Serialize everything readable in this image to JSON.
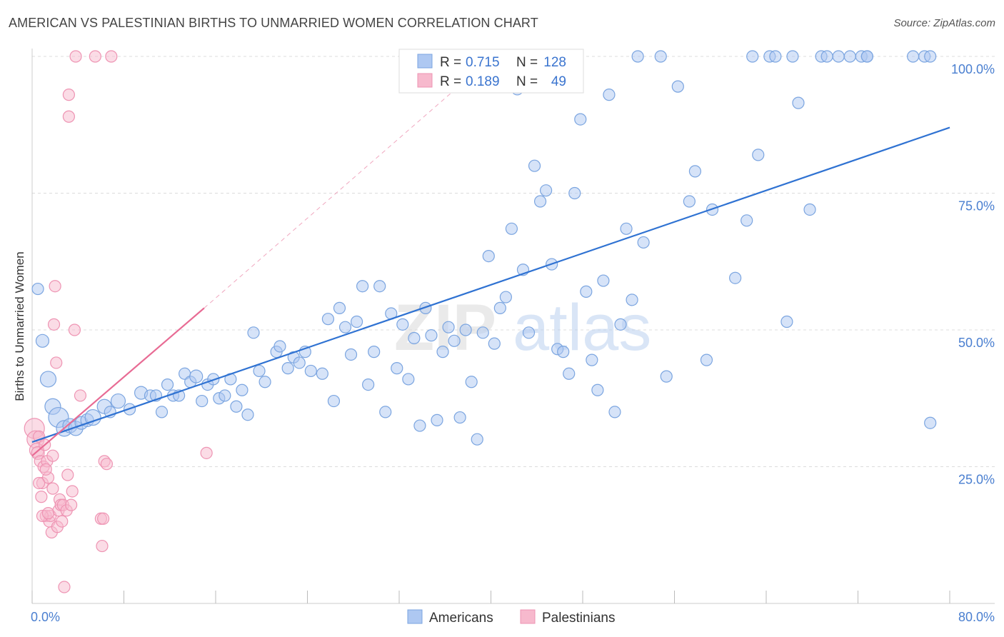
{
  "header": {
    "title": "AMERICAN VS PALESTINIAN BIRTHS TO UNMARRIED WOMEN CORRELATION CHART",
    "source": "Source: ZipAtlas.com"
  },
  "watermark": {
    "part1": "ZIP",
    "part2": "atlas"
  },
  "chart_data": {
    "type": "scatter",
    "title": "AMERICAN VS PALESTINIAN BIRTHS TO UNMARRIED WOMEN CORRELATION CHART",
    "xlabel": "",
    "ylabel": "Births to Unmarried Women",
    "xlim": [
      0,
      80
    ],
    "ylim": [
      0,
      100
    ],
    "x_tick_labels": {
      "min": "0.0%",
      "max": "80.0%"
    },
    "y_ticks": [
      {
        "value": 100,
        "label": "100.0%"
      },
      {
        "value": 75,
        "label": "75.0%"
      },
      {
        "value": 50,
        "label": "50.0%"
      },
      {
        "value": 25,
        "label": "25.0%"
      }
    ],
    "grid": true,
    "legend_placement": "top-center",
    "stats": [
      {
        "r_label": "R =",
        "r": "0.715",
        "n_label": "N =",
        "n": "128",
        "color": "#aec8f2"
      },
      {
        "r_label": "R =",
        "r": "0.189",
        "n_label": "N =",
        "n": "49",
        "color": "#f7b9cd"
      }
    ],
    "series": [
      {
        "name": "Americans",
        "color": "#aec8f2",
        "stroke": "#7ba5e0",
        "trend_color": "#2f72d2",
        "trend": {
          "x0": 0,
          "y0": 29.5,
          "x1": 80,
          "y1": 87
        },
        "points": [
          [
            0.5,
            57.5,
            8
          ],
          [
            0.9,
            48,
            9
          ],
          [
            1.4,
            41,
            11
          ],
          [
            1.8,
            36,
            11
          ],
          [
            2.3,
            34,
            14
          ],
          [
            2.8,
            32,
            11
          ],
          [
            3.3,
            32.5,
            10
          ],
          [
            3.8,
            32,
            10
          ],
          [
            4.3,
            33,
            9
          ],
          [
            4.8,
            33.5,
            9
          ],
          [
            5.3,
            34,
            11
          ],
          [
            6.3,
            36,
            10
          ],
          [
            6.8,
            35,
            8
          ],
          [
            7.5,
            37,
            10
          ],
          [
            8.5,
            35.5,
            8
          ],
          [
            9.5,
            38.5,
            9
          ],
          [
            10.3,
            38,
            8
          ],
          [
            10.8,
            38,
            8
          ],
          [
            11.3,
            35,
            8
          ],
          [
            11.8,
            40,
            8
          ],
          [
            12.3,
            38,
            8
          ],
          [
            12.8,
            38,
            8
          ],
          [
            13.3,
            42,
            8
          ],
          [
            13.8,
            40.5,
            8
          ],
          [
            14.3,
            41.5,
            9
          ],
          [
            14.8,
            37,
            8
          ],
          [
            15.3,
            40,
            8
          ],
          [
            15.8,
            41,
            8
          ],
          [
            16.3,
            37.5,
            8
          ],
          [
            16.8,
            38,
            8
          ],
          [
            17.3,
            41,
            8
          ],
          [
            17.8,
            36,
            8
          ],
          [
            18.3,
            39,
            8
          ],
          [
            18.8,
            34.5,
            8
          ],
          [
            19.3,
            49.5,
            8
          ],
          [
            19.8,
            42.5,
            8
          ],
          [
            20.3,
            40.5,
            8
          ],
          [
            21.3,
            46,
            8
          ],
          [
            21.6,
            47,
            8
          ],
          [
            22.3,
            43,
            8
          ],
          [
            22.8,
            45,
            8
          ],
          [
            23.3,
            44,
            8
          ],
          [
            23.8,
            46,
            8
          ],
          [
            24.3,
            42.5,
            8
          ],
          [
            25.3,
            42,
            8
          ],
          [
            25.8,
            52,
            8
          ],
          [
            26.3,
            37,
            8
          ],
          [
            26.8,
            54,
            8
          ],
          [
            27.3,
            50.5,
            8
          ],
          [
            27.8,
            45.5,
            8
          ],
          [
            28.3,
            51.5,
            8
          ],
          [
            28.8,
            58,
            8
          ],
          [
            29.3,
            40,
            8
          ],
          [
            29.8,
            46,
            8
          ],
          [
            30.3,
            58,
            8
          ],
          [
            30.8,
            35,
            8
          ],
          [
            31.3,
            53,
            8
          ],
          [
            31.8,
            43,
            8
          ],
          [
            32.3,
            51,
            8
          ],
          [
            32.8,
            41,
            8
          ],
          [
            33.3,
            48.5,
            8
          ],
          [
            33.8,
            32.5,
            8
          ],
          [
            34.3,
            54,
            8
          ],
          [
            34.8,
            49,
            8
          ],
          [
            35.3,
            33.5,
            8
          ],
          [
            35.8,
            46,
            8
          ],
          [
            36.3,
            50.5,
            8
          ],
          [
            36.8,
            48,
            8
          ],
          [
            37.3,
            34,
            8
          ],
          [
            37.8,
            50,
            8
          ],
          [
            38.3,
            40.5,
            8
          ],
          [
            38.8,
            30,
            8
          ],
          [
            39.3,
            49.5,
            8
          ],
          [
            39.8,
            63.5,
            8
          ],
          [
            40.3,
            47.5,
            8
          ],
          [
            40.8,
            54,
            8
          ],
          [
            41.3,
            56,
            8
          ],
          [
            41.8,
            68.5,
            8
          ],
          [
            42.3,
            94,
            8
          ],
          [
            42.8,
            61,
            8
          ],
          [
            43.3,
            49.5,
            8
          ],
          [
            43.8,
            80,
            8
          ],
          [
            44.3,
            73.5,
            8
          ],
          [
            44.8,
            75.5,
            8
          ],
          [
            45.3,
            62,
            8
          ],
          [
            45.8,
            46.5,
            8
          ],
          [
            46.3,
            46,
            8
          ],
          [
            46.8,
            42,
            8
          ],
          [
            47.3,
            75,
            8
          ],
          [
            47.8,
            88.5,
            8
          ],
          [
            48.3,
            57,
            8
          ],
          [
            48.8,
            44.5,
            8
          ],
          [
            49.3,
            39,
            8
          ],
          [
            49.8,
            59,
            8
          ],
          [
            50.3,
            93,
            8
          ],
          [
            50.8,
            35,
            8
          ],
          [
            51.3,
            51,
            8
          ],
          [
            51.8,
            68.5,
            8
          ],
          [
            52.3,
            55.5,
            8
          ],
          [
            52.8,
            100,
            8
          ],
          [
            53.3,
            66,
            8
          ],
          [
            54.8,
            100,
            8
          ],
          [
            55.3,
            41.5,
            8
          ],
          [
            56.3,
            94.5,
            8
          ],
          [
            57.3,
            73.5,
            8
          ],
          [
            57.8,
            79,
            8
          ],
          [
            58.8,
            44.5,
            8
          ],
          [
            59.3,
            72,
            8
          ],
          [
            61.3,
            59.5,
            8
          ],
          [
            62.3,
            70,
            8
          ],
          [
            62.8,
            100,
            8
          ],
          [
            63.3,
            82,
            8
          ],
          [
            64.3,
            100,
            8
          ],
          [
            64.8,
            100,
            8
          ],
          [
            65.8,
            51.5,
            8
          ],
          [
            66.3,
            100,
            8
          ],
          [
            66.8,
            91.5,
            8
          ],
          [
            67.8,
            72,
            8
          ],
          [
            68.8,
            100,
            8
          ],
          [
            69.3,
            100,
            8
          ],
          [
            70.3,
            100,
            8
          ],
          [
            71.3,
            100,
            8
          ],
          [
            72.3,
            100,
            8
          ],
          [
            72.8,
            100,
            8
          ],
          [
            72.8,
            100,
            8
          ],
          [
            76.8,
            100,
            8
          ],
          [
            77.8,
            100,
            8
          ],
          [
            78.3,
            33,
            8
          ],
          [
            78.3,
            100,
            8
          ]
        ]
      },
      {
        "name": "Palestinians",
        "color": "#f7b9cd",
        "stroke": "#ee94b3",
        "trend_color": "#e86b94",
        "trend": {
          "x0": 0,
          "y0": 27,
          "x1": 15,
          "y1": 54
        },
        "trend_ext": {
          "x0": 15,
          "y0": 54,
          "x1": 38,
          "y1": 96
        },
        "points": [
          [
            0.2,
            32,
            14
          ],
          [
            0.3,
            30,
            12
          ],
          [
            0.4,
            28,
            10
          ],
          [
            0.5,
            27.5,
            9
          ],
          [
            0.6,
            30.5,
            8
          ],
          [
            0.7,
            26,
            8
          ],
          [
            0.8,
            19.5,
            8
          ],
          [
            0.9,
            22,
            8
          ],
          [
            1.0,
            25,
            8
          ],
          [
            1.1,
            29,
            8
          ],
          [
            1.2,
            16,
            8
          ],
          [
            1.3,
            26,
            8
          ],
          [
            1.4,
            23,
            8
          ],
          [
            1.5,
            15,
            8
          ],
          [
            1.6,
            16,
            8
          ],
          [
            1.7,
            13,
            8
          ],
          [
            1.8,
            21,
            8
          ],
          [
            1.8,
            27,
            8
          ],
          [
            1.9,
            51,
            8
          ],
          [
            2.0,
            58,
            8
          ],
          [
            2.1,
            44,
            8
          ],
          [
            2.2,
            14,
            8
          ],
          [
            2.3,
            17,
            8
          ],
          [
            2.4,
            19,
            8
          ],
          [
            2.5,
            18,
            8
          ],
          [
            2.6,
            15,
            8
          ],
          [
            2.7,
            18,
            8
          ],
          [
            2.8,
            3,
            8
          ],
          [
            3.0,
            17,
            8
          ],
          [
            3.1,
            23.5,
            8
          ],
          [
            3.2,
            89,
            8
          ],
          [
            3.2,
            93,
            8
          ],
          [
            3.4,
            18,
            8
          ],
          [
            3.5,
            20.5,
            8
          ],
          [
            3.7,
            50,
            8
          ],
          [
            3.8,
            100,
            8
          ],
          [
            4.2,
            38,
            8
          ],
          [
            5.5,
            100,
            8
          ],
          [
            6.0,
            15.5,
            8
          ],
          [
            6.1,
            10.5,
            8
          ],
          [
            6.2,
            15.5,
            8
          ],
          [
            6.3,
            26,
            8
          ],
          [
            6.5,
            25.5,
            8
          ],
          [
            6.9,
            100,
            8
          ],
          [
            15.2,
            27.5,
            8
          ],
          [
            0.9,
            16,
            8
          ],
          [
            1.2,
            24.5,
            8
          ],
          [
            0.6,
            22,
            8
          ],
          [
            1.4,
            16.5,
            8
          ]
        ]
      }
    ]
  }
}
